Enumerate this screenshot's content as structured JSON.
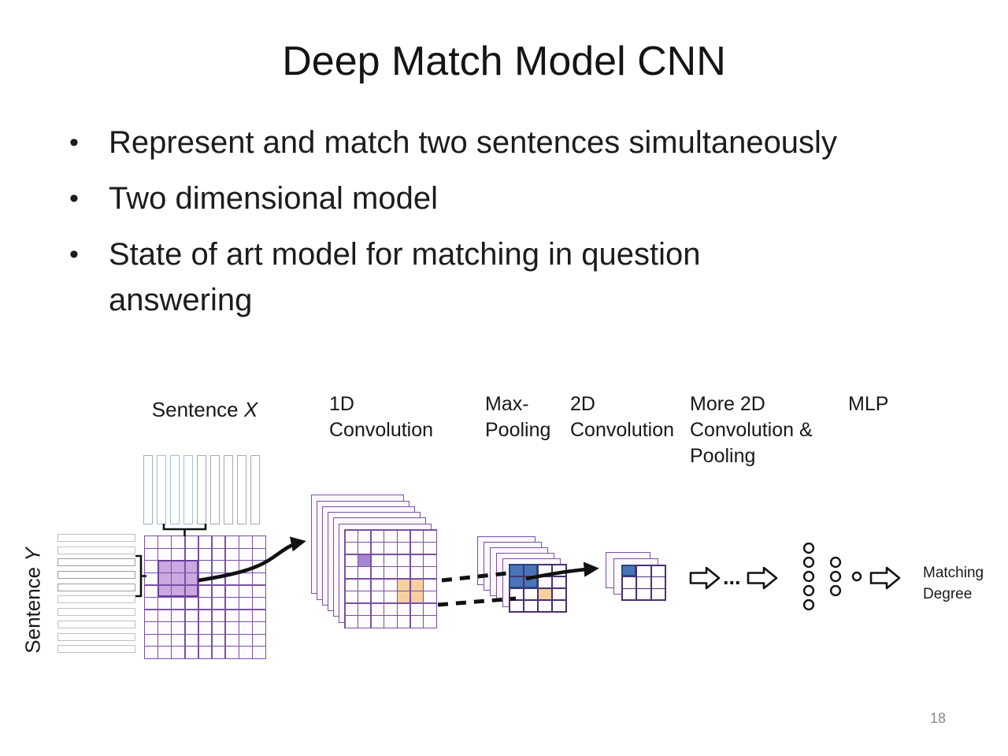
{
  "slide": {
    "title": "Deep Match Model CNN",
    "bullets": [
      {
        "lines": [
          "Represent and match two sentences simultaneously"
        ]
      },
      {
        "lines": [
          "Two dimensional model"
        ]
      },
      {
        "lines": [
          "State of art model for matching in question",
          "answering"
        ]
      }
    ],
    "page_number": "18"
  },
  "diagram": {
    "sentence_x": {
      "word": "Sentence",
      "var": "X"
    },
    "sentence_y": {
      "word": "Sentence",
      "var": "Y"
    },
    "stages": [
      {
        "lines": [
          "1D",
          "Convolution"
        ]
      },
      {
        "lines": [
          "Max-",
          "Pooling"
        ]
      },
      {
        "lines": [
          "2D",
          "Convolution"
        ]
      },
      {
        "lines": [
          "More 2D",
          "Convolution &",
          "Pooling"
        ]
      },
      {
        "lines": [
          "MLP"
        ]
      }
    ],
    "ellipsis": "...",
    "matching_degree": {
      "lines": [
        "Matching",
        "Degree"
      ]
    },
    "sentence_x_bars": {
      "count": 9,
      "highlighted": [
        1,
        2,
        3
      ]
    },
    "sentence_y_bars": {
      "count": 10,
      "highlighted": [
        2,
        3,
        4
      ]
    },
    "match_grid": {
      "cols": 9,
      "rows": 10,
      "marks": [
        {
          "c": 1,
          "r": 2,
          "cs": 3,
          "rs": 3,
          "fill": "highlight_fill",
          "border": "highlight_border"
        }
      ]
    },
    "conv1d": {
      "layers": 7,
      "cols": 7,
      "rows": 8,
      "marks": [
        {
          "c": 1,
          "r": 2,
          "cs": 1,
          "rs": 1,
          "fill": "purple_cell"
        },
        {
          "c": 4,
          "r": 4,
          "cs": 2,
          "rs": 2,
          "fill": "orange_cell"
        }
      ]
    },
    "maxpool": {
      "layers": 6,
      "cols": 4,
      "rows": 4,
      "marks": [
        {
          "c": 0,
          "r": 0,
          "cs": 2,
          "rs": 2,
          "fill": "blue_cell",
          "border": "blue_border"
        },
        {
          "c": 2,
          "r": 2,
          "cs": 1,
          "rs": 1,
          "fill": "orange_cell"
        }
      ]
    },
    "conv2d": {
      "layers": 3,
      "cols": 3,
      "rows": 3,
      "marks": [
        {
          "c": 0,
          "r": 0,
          "cs": 1,
          "rs": 1,
          "fill": "blue_cell",
          "border": "blue_border"
        }
      ]
    },
    "mlp": {
      "layer_sizes": [
        5,
        3,
        1
      ]
    }
  },
  "colors": {
    "grid_line": "#7a50a5",
    "grid_line_dark": "#4a3070",
    "grid_cell": "#fefcff",
    "stack_fill": "#fcf8fd",
    "highlight_fill": "#c9a9e0",
    "highlight_border": "#6a3fa0",
    "purple_cell": "#a886d4",
    "orange_cell": "#f8cf9f",
    "blue_cell": "#4a74b8",
    "blue_border": "#27477f",
    "xbar_border": "#a3abb3",
    "xbar_highlight_border": "#a2bedd",
    "ybar_border": "#bcc0c4",
    "ybar_highlight_border": "#989c9f",
    "ink": "#111111"
  }
}
